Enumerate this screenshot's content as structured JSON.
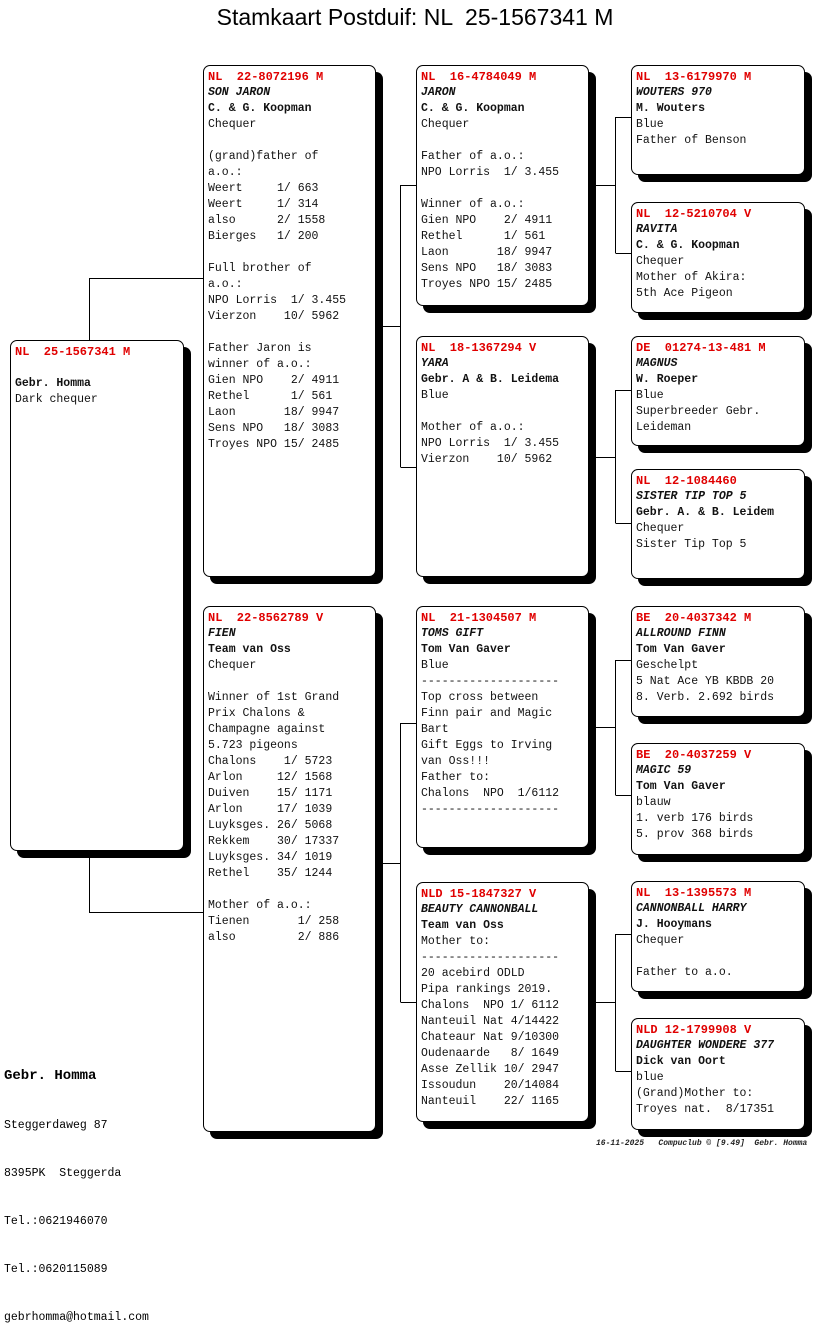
{
  "title": "Stamkaart Postduif: NL  25-1567341 M",
  "pigeons": [
    {
      "role": "subject",
      "ring": "NL  25-1567341 M",
      "name": "",
      "owner": "Gebr. Homma",
      "lines": [
        "Dark chequer"
      ]
    },
    {
      "role": "father",
      "ring": "NL  22-8072196 M",
      "name": "SON JARON",
      "owner": "C. & G. Koopman",
      "lines": [
        "Chequer",
        "",
        "(grand)father of",
        "a.o.:",
        "Weert     1/ 663",
        "Weert     1/ 314",
        "also      2/ 1558",
        "Bierges   1/ 200",
        "",
        "Full brother of",
        "a.o.:",
        "NPO Lorris  1/ 3.455",
        "Vierzon    10/ 5962",
        "",
        "Father Jaron is",
        "winner of a.o.:",
        "Gien NPO    2/ 4911",
        "Rethel      1/ 561",
        "Laon       18/ 9947",
        "Sens NPO   18/ 3083",
        "Troyes NPO 15/ 2485"
      ]
    },
    {
      "role": "mother",
      "ring": "NL  22-8562789 V",
      "name": "FIEN",
      "owner": "Team van Oss",
      "lines": [
        "Chequer",
        "",
        "Winner of 1st Grand",
        "Prix Chalons &",
        "Champagne against",
        "5.723 pigeons",
        "Chalons    1/ 5723",
        "Arlon     12/ 1568",
        "Duiven    15/ 1171",
        "Arlon     17/ 1039",
        "Luyksges. 26/ 5068",
        "Rekkem    30/ 17337",
        "Luyksges. 34/ 1019",
        "Rethel    35/ 1244",
        "",
        "Mother of a.o.:",
        "Tienen       1/ 258",
        "also         2/ 886"
      ]
    },
    {
      "role": "father-father",
      "ring": "NL  16-4784049 M",
      "name": "JARON",
      "owner": "C. & G. Koopman",
      "lines": [
        "Chequer",
        "",
        "Father of a.o.:",
        "NPO Lorris  1/ 3.455",
        "",
        "Winner of a.o.:",
        "Gien NPO    2/ 4911",
        "Rethel      1/ 561",
        "Laon       18/ 9947",
        "Sens NPO   18/ 3083",
        "Troyes NPO 15/ 2485"
      ]
    },
    {
      "role": "father-mother",
      "ring": "NL  18-1367294 V",
      "name": "YARA",
      "owner": "Gebr. A & B. Leidema",
      "lines": [
        "Blue",
        "",
        "Mother of a.o.:",
        "NPO Lorris  1/ 3.455",
        "Vierzon    10/ 5962"
      ]
    },
    {
      "role": "mother-father",
      "ring": "NL  21-1304507 M",
      "name": "TOMS GIFT",
      "owner": "Tom Van Gaver",
      "lines": [
        "Blue",
        "--------------------",
        "Top cross between",
        "Finn pair and Magic",
        "Bart",
        "Gift Eggs to Irving",
        "van Oss!!!",
        "Father to:",
        "Chalons  NPO  1/6112",
        "--------------------"
      ]
    },
    {
      "role": "mother-mother",
      "ring": "NLD 15-1847327 V",
      "name": "BEAUTY CANNONBALL",
      "owner": "Team van Oss",
      "lines": [
        "Mother to:",
        "--------------------",
        "20 acebird ODLD",
        "Pipa rankings 2019.",
        "Chalons  NPO 1/ 6112",
        "Nanteuil Nat 4/14422",
        "Chateaur Nat 9/10300",
        "Oudenaarde   8/ 1649",
        "Asse Zellik 10/ 2947",
        "Issoudun    20/14084",
        "Nanteuil    22/ 1165"
      ]
    },
    {
      "role": "ff-father",
      "ring": "NL  13-6179970 M",
      "name": "WOUTERS 970",
      "owner": "M. Wouters",
      "lines": [
        "Blue",
        "Father of Benson"
      ]
    },
    {
      "role": "ff-mother",
      "ring": "NL  12-5210704 V",
      "name": "RAVITA",
      "owner": "C. & G. Koopman",
      "lines": [
        "Chequer",
        "Mother of Akira:",
        "5th Ace Pigeon"
      ]
    },
    {
      "role": "fm-father",
      "ring": "DE  01274-13-481 M",
      "name": "MAGNUS",
      "owner": "W. Roeper",
      "lines": [
        "Blue",
        "Superbreeder Gebr.",
        "Leideman"
      ]
    },
    {
      "role": "fm-mother",
      "ring": "NL  12-1084460",
      "name": "SISTER TIP TOP 5",
      "owner": "Gebr. A. & B. Leidem",
      "lines": [
        "Chequer",
        "Sister Tip Top 5"
      ]
    },
    {
      "role": "mf-father",
      "ring": "BE  20-4037342 M",
      "name": "ALLROUND FINN",
      "owner": "Tom Van Gaver",
      "lines": [
        "Geschelpt",
        "5 Nat Ace YB KBDB 20",
        "8. Verb. 2.692 birds"
      ]
    },
    {
      "role": "mf-mother",
      "ring": "BE  20-4037259 V",
      "name": "MAGIC 59",
      "owner": "Tom Van Gaver",
      "lines": [
        "blauw",
        "1. verb 176 birds",
        "5. prov 368 birds"
      ]
    },
    {
      "role": "mm-father",
      "ring": "NL  13-1395573 M",
      "name": "CANNONBALL HARRY",
      "owner": "J. Hooymans",
      "lines": [
        "Chequer",
        "",
        "Father to a.o."
      ]
    },
    {
      "role": "mm-mother",
      "ring": "NLD 12-1799908 V",
      "name": "DAUGHTER WONDERE 377",
      "owner": "Dick van Oort",
      "lines": [
        "blue",
        "(Grand)Mother to:",
        "Troyes nat.  8/17351"
      ]
    }
  ],
  "owner": {
    "name": "Gebr. Homma",
    "lines": [
      "Steggerdaweg 87",
      "8395PK  Steggerda",
      "Tel.:0621946070",
      "Tel.:0620115089",
      "gebrhomma@hotmail.com"
    ]
  },
  "footer": "16-11-2025   Compuclub © [9.49]  Gebr. Homma",
  "colors": {
    "ring": "#e00000",
    "text": "#111111",
    "shadow": "#000000"
  }
}
